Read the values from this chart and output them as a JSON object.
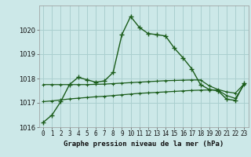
{
  "title": "Graphe pression niveau de la mer (hPa)",
  "background_color": "#cce8e8",
  "grid_color": "#aacfcf",
  "line_color": "#1a5c1a",
  "x_values": [
    0,
    1,
    2,
    3,
    4,
    5,
    6,
    7,
    8,
    9,
    10,
    11,
    12,
    13,
    14,
    15,
    16,
    17,
    18,
    19,
    20,
    21,
    22,
    23
  ],
  "series1": [
    1016.2,
    1016.5,
    1017.05,
    1017.75,
    1018.05,
    1017.95,
    1017.85,
    1017.9,
    1018.25,
    1019.8,
    1020.55,
    1020.1,
    1019.85,
    1019.8,
    1019.75,
    1019.25,
    1018.85,
    1018.4,
    1017.75,
    1017.55,
    1017.5,
    1017.15,
    1017.1,
    1017.8
  ],
  "series2": [
    1017.75,
    1017.75,
    1017.75,
    1017.75,
    1017.75,
    1017.75,
    1017.76,
    1017.77,
    1017.79,
    1017.81,
    1017.83,
    1017.85,
    1017.87,
    1017.89,
    1017.91,
    1017.92,
    1017.93,
    1017.94,
    1017.94,
    1017.7,
    1017.55,
    1017.45,
    1017.4,
    1017.78
  ],
  "series3": [
    1017.05,
    1017.08,
    1017.12,
    1017.16,
    1017.19,
    1017.22,
    1017.25,
    1017.27,
    1017.3,
    1017.33,
    1017.36,
    1017.39,
    1017.41,
    1017.43,
    1017.45,
    1017.47,
    1017.49,
    1017.51,
    1017.52,
    1017.53,
    1017.52,
    1017.3,
    1017.18,
    1017.75
  ],
  "ylim": [
    1016.0,
    1021.0
  ],
  "yticks": [
    1016,
    1017,
    1018,
    1019,
    1020
  ],
  "xlim": [
    -0.5,
    23.5
  ],
  "xticks": [
    0,
    1,
    2,
    3,
    4,
    5,
    6,
    7,
    8,
    9,
    10,
    11,
    12,
    13,
    14,
    15,
    16,
    17,
    18,
    19,
    20,
    21,
    22,
    23
  ]
}
